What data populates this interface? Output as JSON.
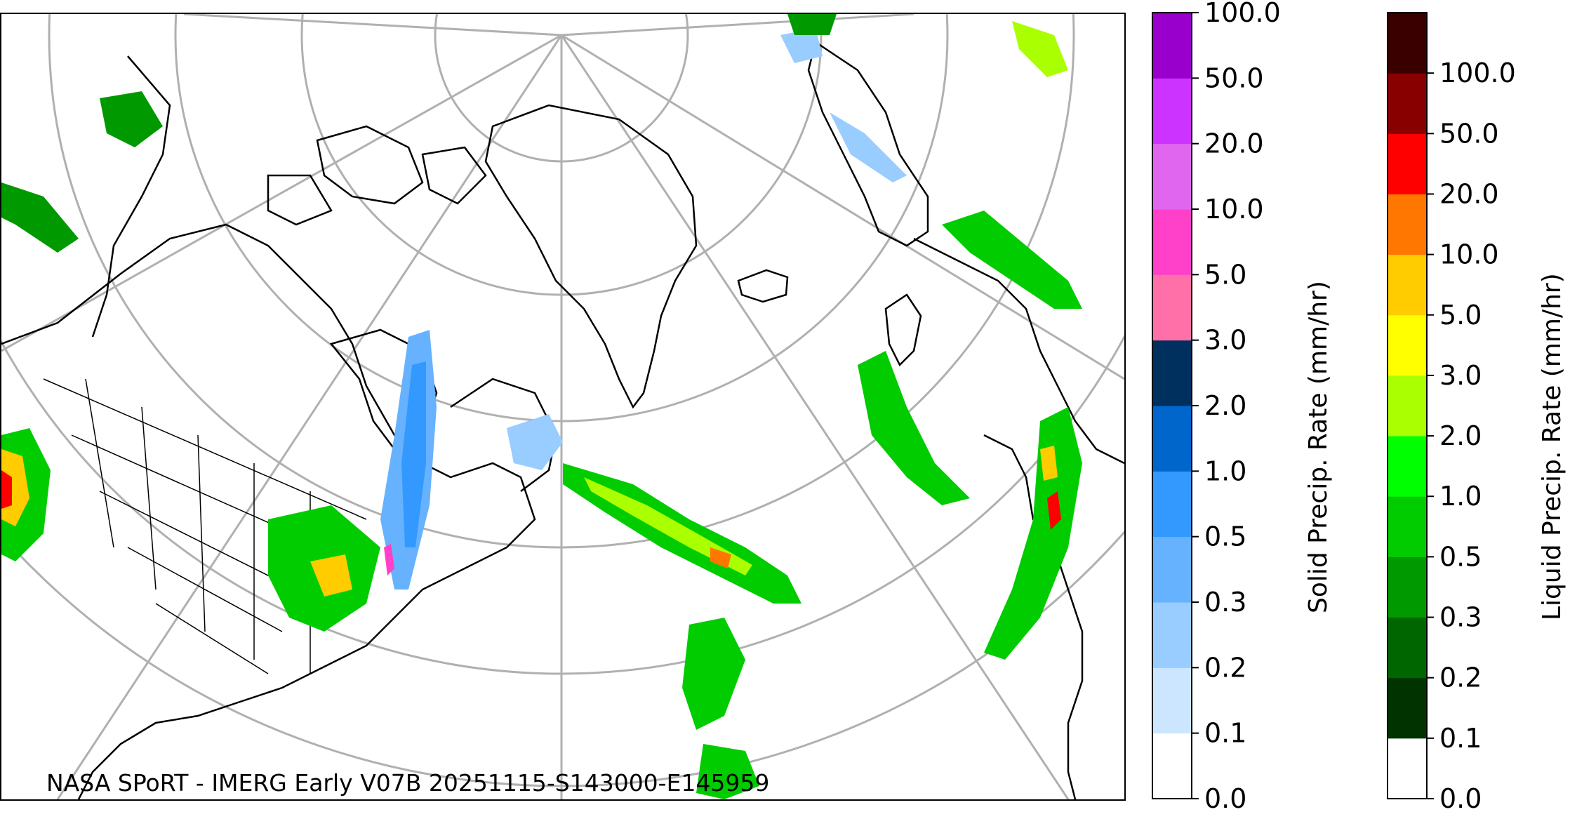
{
  "credit": "NASA SPoRT - IMERG Early V07B 20251115-S143000-E145959",
  "solid_colorbar": {
    "label": "Solid Precip. Rate (mm/hr)",
    "ticks": [
      "0.0",
      "0.1",
      "0.2",
      "0.3",
      "0.5",
      "1.0",
      "2.0",
      "3.0",
      "5.0",
      "10.0",
      "20.0",
      "50.0",
      "100.0"
    ],
    "colors": [
      "#ffffff",
      "#cce6ff",
      "#99ccff",
      "#66b2ff",
      "#3399ff",
      "#0066cc",
      "#00305e",
      "#ff6fa8",
      "#ff40c8",
      "#e066f0",
      "#cc33ff",
      "#9900cc"
    ]
  },
  "liquid_colorbar": {
    "label": "Liquid Precip. Rate (mm/hr)",
    "ticks": [
      "0.0",
      "0.1",
      "0.2",
      "0.3",
      "0.5",
      "1.0",
      "2.0",
      "3.0",
      "5.0",
      "10.0",
      "20.0",
      "50.0",
      "100.0"
    ],
    "colors": [
      "#ffffff",
      "#003300",
      "#006600",
      "#009900",
      "#00cc00",
      "#00ff00",
      "#aaff00",
      "#ffff00",
      "#ffcc00",
      "#ff7700",
      "#ff0000",
      "#880000",
      "#3a0000"
    ]
  },
  "map": {
    "projection": "polar stereographic (North Atlantic / North America)",
    "graticule_color": "#b0b0b0",
    "coastline_color": "#000000"
  }
}
